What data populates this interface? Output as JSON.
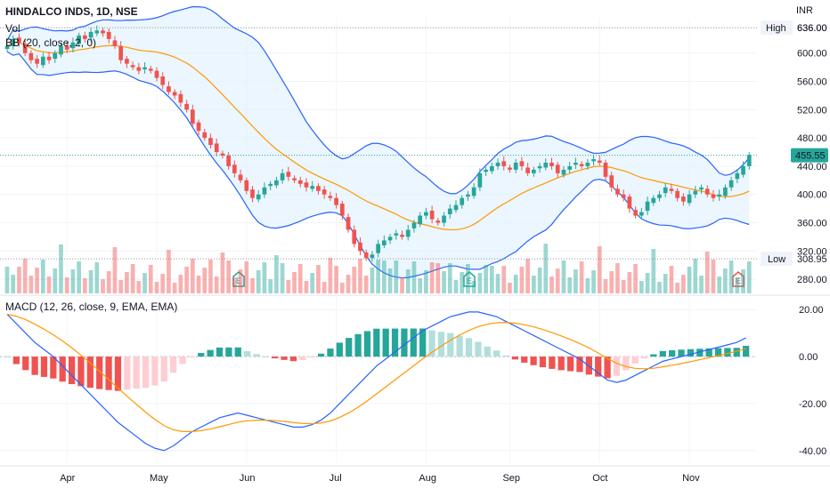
{
  "header": {
    "symbol_line": "HINDALCO INDS, 1D, NSE",
    "vol_label": "Vol",
    "bb_label": "BB (20, close, 2, 0)",
    "macd_label": "MACD (12, 26, close, 9, EMA, EMA)",
    "currency": "INR"
  },
  "colors": {
    "up": "#26a69a",
    "down": "#ef5350",
    "bb": "#2962ff",
    "basis": "#ff9800",
    "fill": "#e3f2fd",
    "macd_line": "#2962ff",
    "signal_line": "#ff9800",
    "price_tag": "#26a69a"
  },
  "chart_data": {
    "type": "candlestick",
    "price_axis": {
      "ticks": [
        "636.00",
        "600.00",
        "560.00",
        "520.00",
        "480.00",
        "440.00",
        "400.00",
        "360.00",
        "320.00",
        "280.00"
      ]
    },
    "macd_axis": {
      "ticks": [
        "20.00",
        "0.00",
        "-20.00",
        "-40.00"
      ]
    },
    "x_labels": [
      "Apr",
      "May",
      "Jun",
      "Jul",
      "Aug",
      "Sep",
      "Oct",
      "Nov"
    ],
    "high_label": "High",
    "high_value": "636.00",
    "low_label": "Low",
    "low_value": "308.95",
    "last_price": "455.55",
    "earnings_marker": "E",
    "price_range": [
      260,
      650
    ],
    "macd_range": [
      -45,
      25
    ],
    "close": [
      610,
      620,
      615,
      600,
      590,
      585,
      595,
      590,
      600,
      610,
      605,
      615,
      625,
      620,
      630,
      632,
      628,
      620,
      610,
      590,
      585,
      580,
      575,
      580,
      575,
      565,
      555,
      545,
      540,
      530,
      520,
      500,
      490,
      480,
      470,
      460,
      455,
      440,
      430,
      420,
      405,
      395,
      400,
      410,
      415,
      420,
      430,
      425,
      420,
      415,
      410,
      412,
      405,
      400,
      395,
      385,
      370,
      350,
      330,
      320,
      310,
      315,
      330,
      335,
      340,
      345,
      340,
      350,
      360,
      370,
      375,
      365,
      360,
      370,
      380,
      385,
      395,
      400,
      410,
      430,
      435,
      440,
      445,
      440,
      435,
      445,
      440,
      430,
      435,
      440,
      445,
      440,
      430,
      435,
      440,
      445,
      440,
      445,
      450,
      445,
      425,
      410,
      400,
      395,
      380,
      370,
      375,
      390,
      395,
      400,
      410,
      405,
      395,
      390,
      400,
      405,
      410,
      400,
      395,
      400,
      410,
      420,
      430,
      440,
      456
    ],
    "macd": [
      18,
      14,
      10,
      6,
      3,
      0,
      -4,
      -8,
      -12,
      -16,
      -20,
      -24,
      -28,
      -31,
      -34,
      -37,
      -39,
      -40,
      -38,
      -35,
      -32,
      -30,
      -28,
      -26,
      -25,
      -24,
      -25,
      -26,
      -27,
      -28,
      -29,
      -30,
      -30,
      -29,
      -27,
      -24,
      -20,
      -16,
      -12,
      -8,
      -4,
      -1,
      2,
      5,
      8,
      11,
      13,
      15,
      17,
      18,
      19,
      19,
      18,
      17,
      15,
      13,
      11,
      9,
      7,
      5,
      3,
      1,
      -1,
      -4,
      -7,
      -10,
      -11,
      -10,
      -8,
      -6,
      -4,
      -2,
      -1,
      0,
      1,
      2,
      3,
      4,
      5,
      6,
      8
    ]
  }
}
